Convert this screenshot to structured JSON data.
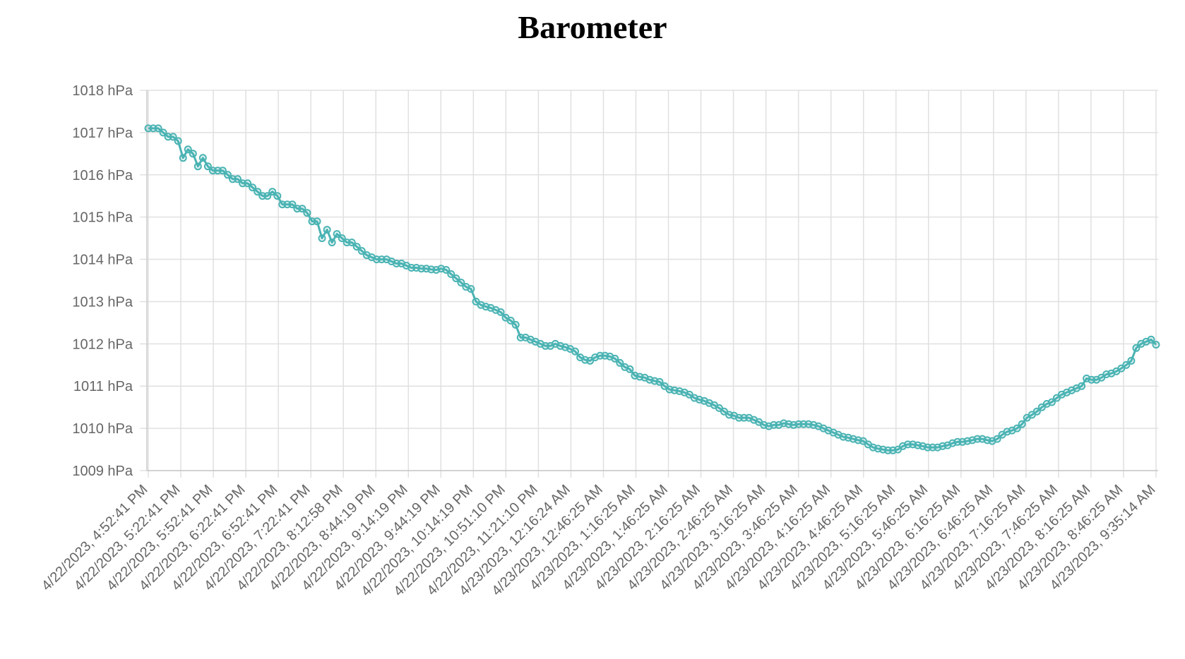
{
  "chart_data": {
    "type": "line",
    "title": "Barometer",
    "ylim": [
      1009,
      1018
    ],
    "y_unit": "hPa",
    "y_ticks": [
      1009,
      1010,
      1011,
      1012,
      1013,
      1014,
      1015,
      1016,
      1017,
      1018
    ],
    "y_tick_labels": [
      "1009 hPa",
      "1010 hPa",
      "1011 hPa",
      "1012 hPa",
      "1013 hPa",
      "1014 hPa",
      "1015 hPa",
      "1016 hPa",
      "1017 hPa",
      "1018 hPa"
    ],
    "x_tick_labels": [
      "4/22/2023, 4:52:41 PM",
      "4/22/2023, 5:22:41 PM",
      "4/22/2023, 5:52:41 PM",
      "4/22/2023, 6:22:41 PM",
      "4/22/2023, 6:52:41 PM",
      "4/22/2023, 7:22:41 PM",
      "4/22/2023, 8:12:58 PM",
      "4/22/2023, 8:44:19 PM",
      "4/22/2023, 9:14:19 PM",
      "4/22/2023, 9:44:19 PM",
      "4/22/2023, 10:14:19 PM",
      "4/22/2023, 10:51:10 PM",
      "4/22/2023, 11:21:10 PM",
      "4/23/2023, 12:16:24 AM",
      "4/23/2023, 12:46:25 AM",
      "4/23/2023, 1:16:25 AM",
      "4/23/2023, 1:46:25 AM",
      "4/23/2023, 2:16:25 AM",
      "4/23/2023, 2:46:25 AM",
      "4/23/2023, 3:16:25 AM",
      "4/23/2023, 3:46:25 AM",
      "4/23/2023, 4:16:25 AM",
      "4/23/2023, 4:46:25 AM",
      "4/23/2023, 5:16:25 AM",
      "4/23/2023, 5:46:25 AM",
      "4/23/2023, 6:16:25 AM",
      "4/23/2023, 6:46:25 AM",
      "4/23/2023, 7:16:25 AM",
      "4/23/2023, 7:46:25 AM",
      "4/23/2023, 8:16:25 AM",
      "4/23/2023, 8:46:25 AM",
      "4/23/2023, 9:35:14 AM"
    ],
    "grid": true,
    "legend": "none",
    "series": [
      {
        "color": "#4bb3b3",
        "values": [
          1017.1,
          1017.1,
          1017.1,
          1017.0,
          1016.9,
          1016.9,
          1016.8,
          1016.4,
          1016.6,
          1016.5,
          1016.2,
          1016.4,
          1016.2,
          1016.1,
          1016.1,
          1016.1,
          1016.0,
          1015.9,
          1015.9,
          1015.8,
          1015.8,
          1015.7,
          1015.6,
          1015.5,
          1015.5,
          1015.6,
          1015.5,
          1015.3,
          1015.3,
          1015.3,
          1015.2,
          1015.2,
          1015.1,
          1014.9,
          1014.9,
          1014.5,
          1014.7,
          1014.4,
          1014.6,
          1014.5,
          1014.4,
          1014.4,
          1014.3,
          1014.2,
          1014.1,
          1014.05,
          1014.0,
          1014.0,
          1014.0,
          1013.95,
          1013.9,
          1013.9,
          1013.85,
          1013.8,
          1013.8,
          1013.78,
          1013.78,
          1013.76,
          1013.75,
          1013.78,
          1013.75,
          1013.65,
          1013.55,
          1013.45,
          1013.35,
          1013.3,
          1013.0,
          1012.92,
          1012.88,
          1012.85,
          1012.8,
          1012.75,
          1012.62,
          1012.55,
          1012.45,
          1012.15,
          1012.15,
          1012.1,
          1012.05,
          1012.0,
          1011.95,
          1011.95,
          1012.0,
          1011.95,
          1011.92,
          1011.88,
          1011.82,
          1011.68,
          1011.62,
          1011.6,
          1011.68,
          1011.72,
          1011.72,
          1011.7,
          1011.65,
          1011.55,
          1011.45,
          1011.4,
          1011.25,
          1011.22,
          1011.2,
          1011.15,
          1011.12,
          1011.1,
          1011.0,
          1010.92,
          1010.9,
          1010.88,
          1010.85,
          1010.8,
          1010.72,
          1010.68,
          1010.65,
          1010.6,
          1010.55,
          1010.48,
          1010.4,
          1010.32,
          1010.3,
          1010.25,
          1010.25,
          1010.25,
          1010.2,
          1010.15,
          1010.08,
          1010.05,
          1010.08,
          1010.08,
          1010.12,
          1010.1,
          1010.08,
          1010.1,
          1010.1,
          1010.1,
          1010.08,
          1010.05,
          1010.0,
          1009.95,
          1009.9,
          1009.85,
          1009.8,
          1009.78,
          1009.75,
          1009.72,
          1009.7,
          1009.62,
          1009.55,
          1009.52,
          1009.5,
          1009.48,
          1009.48,
          1009.5,
          1009.58,
          1009.62,
          1009.62,
          1009.6,
          1009.58,
          1009.55,
          1009.55,
          1009.55,
          1009.58,
          1009.6,
          1009.65,
          1009.68,
          1009.68,
          1009.7,
          1009.72,
          1009.75,
          1009.75,
          1009.72,
          1009.7,
          1009.75,
          1009.85,
          1009.92,
          1009.95,
          1010.0,
          1010.1,
          1010.25,
          1010.32,
          1010.4,
          1010.5,
          1010.58,
          1010.62,
          1010.72,
          1010.8,
          1010.85,
          1010.9,
          1010.95,
          1011.0,
          1011.18,
          1011.15,
          1011.15,
          1011.2,
          1011.28,
          1011.3,
          1011.35,
          1011.42,
          1011.5,
          1011.6,
          1011.9,
          1012.0,
          1012.05,
          1012.1,
          1011.98
        ]
      }
    ]
  }
}
